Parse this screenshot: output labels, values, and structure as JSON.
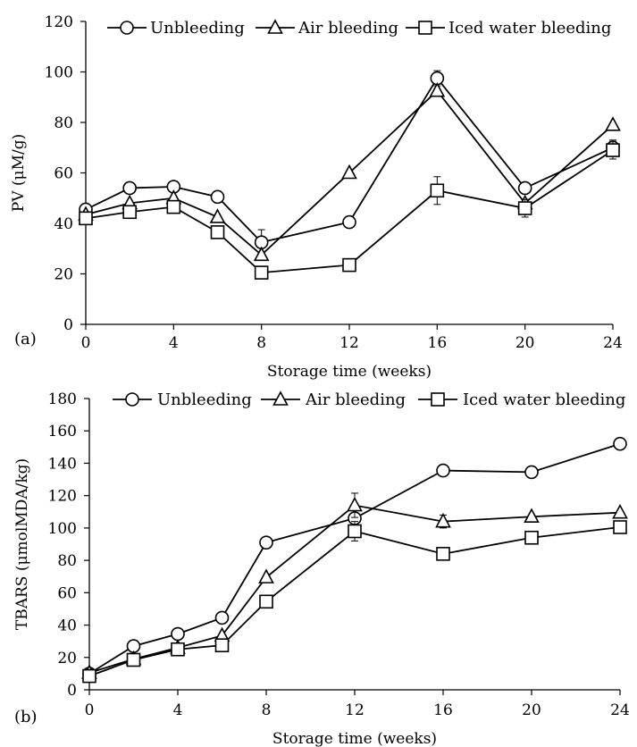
{
  "chart_data": [
    {
      "type": "line",
      "panel_label": "(a)",
      "xlabel": "Storage time (weeks)",
      "ylabel": "PV (μM/g)",
      "x": [
        0,
        2,
        4,
        6,
        8,
        12,
        16,
        20,
        24
      ],
      "x_ticks": [
        "0",
        "4",
        "8",
        "12",
        "16",
        "20",
        "24"
      ],
      "xlim": [
        0,
        24
      ],
      "ylim": [
        0,
        120
      ],
      "y_ticks": [
        "0",
        "20",
        "40",
        "60",
        "80",
        "100",
        "120"
      ],
      "grid": false,
      "legend_position": "top",
      "series": [
        {
          "name": "Unbleeding",
          "marker": "circle",
          "values": [
            45.5,
            54,
            54.5,
            50.5,
            32.5,
            40.5,
            97.5,
            54,
            70
          ],
          "errors": [
            2,
            0,
            0,
            0,
            5,
            0,
            3,
            0,
            3
          ]
        },
        {
          "name": "Air bleeding",
          "marker": "triangle",
          "values": [
            43.5,
            48,
            50,
            42.5,
            27.5,
            60,
            92.5,
            48,
            79
          ],
          "errors": [
            0,
            0,
            0,
            0,
            0,
            0,
            0,
            0,
            0
          ]
        },
        {
          "name": "Iced water bleeding",
          "marker": "square",
          "values": [
            42,
            44.5,
            46.5,
            36.5,
            20.5,
            23.5,
            53,
            46,
            69
          ],
          "errors": [
            0,
            0,
            0,
            0,
            0,
            0,
            5.5,
            3.5,
            3.5
          ]
        }
      ]
    },
    {
      "type": "line",
      "panel_label": "(b)",
      "xlabel": "Storage time (weeks)",
      "ylabel": "TBARS (μmolMDA/kg)",
      "x": [
        0,
        2,
        4,
        6,
        8,
        12,
        16,
        20,
        24
      ],
      "x_ticks": [
        "0",
        "4",
        "8",
        "12",
        "16",
        "20",
        "24"
      ],
      "xlim": [
        0,
        24
      ],
      "ylim": [
        0,
        180
      ],
      "y_ticks": [
        "0",
        "20",
        "40",
        "60",
        "80",
        "100",
        "120",
        "140",
        "160",
        "180"
      ],
      "grid": false,
      "legend_position": "top",
      "series": [
        {
          "name": "Unbleeding",
          "marker": "circle",
          "values": [
            10,
            27,
            34.5,
            44.5,
            91,
            106,
            135.5,
            134.5,
            152
          ],
          "errors": [
            2,
            0,
            0,
            0,
            0,
            0,
            0,
            0,
            0
          ]
        },
        {
          "name": "Air bleeding",
          "marker": "triangle",
          "values": [
            10.5,
            19,
            26,
            33.5,
            69.5,
            114,
            104,
            107,
            109.5
          ],
          "errors": [
            0,
            0,
            0,
            0,
            0,
            7.5,
            4,
            0,
            0
          ]
        },
        {
          "name": "Iced water bleeding",
          "marker": "square",
          "values": [
            8.5,
            18.5,
            25,
            27.5,
            54.5,
            98,
            84,
            94,
            100.5
          ],
          "errors": [
            2,
            0,
            0,
            0,
            0,
            6,
            0,
            0,
            0
          ]
        }
      ]
    }
  ]
}
